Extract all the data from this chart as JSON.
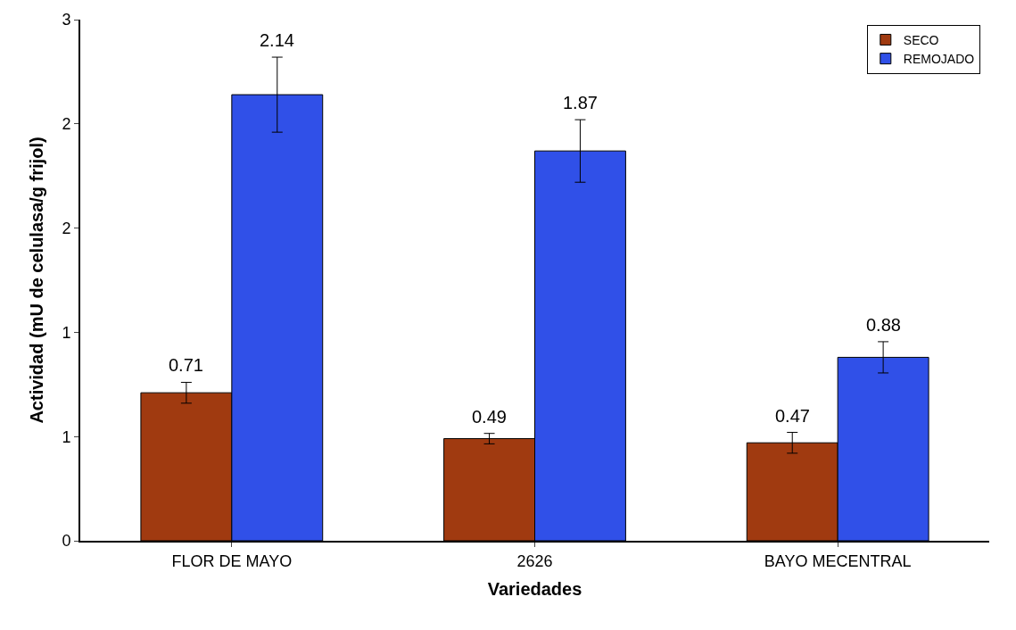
{
  "chart_data": {
    "type": "bar",
    "xlabel": "Variedades",
    "ylabel": "Actividad (mU de celulasa/g frijol)",
    "categories": [
      "FLOR DE MAYO",
      "2626",
      "BAYO MECENTRAL"
    ],
    "series": [
      {
        "name": "SECO",
        "color": "#a03a10",
        "values": [
          0.71,
          0.49,
          0.47
        ],
        "errors": [
          0.05,
          0.025,
          0.05
        ]
      },
      {
        "name": "REMOJADO",
        "color": "#3050e8",
        "values": [
          2.14,
          1.87,
          0.88
        ],
        "errors": [
          0.18,
          0.15,
          0.075
        ]
      }
    ],
    "ylim": [
      0,
      2.5
    ],
    "yticks": [
      0,
      {
        "value": 0.5,
        "label": "1"
      },
      {
        "value": 1.0,
        "label": "1"
      },
      {
        "value": 1.5,
        "label": "2"
      },
      {
        "value": 2.0,
        "label": "2"
      },
      {
        "value": 2.5,
        "label": "3"
      }
    ],
    "data_labels": true,
    "legend": "top right"
  }
}
